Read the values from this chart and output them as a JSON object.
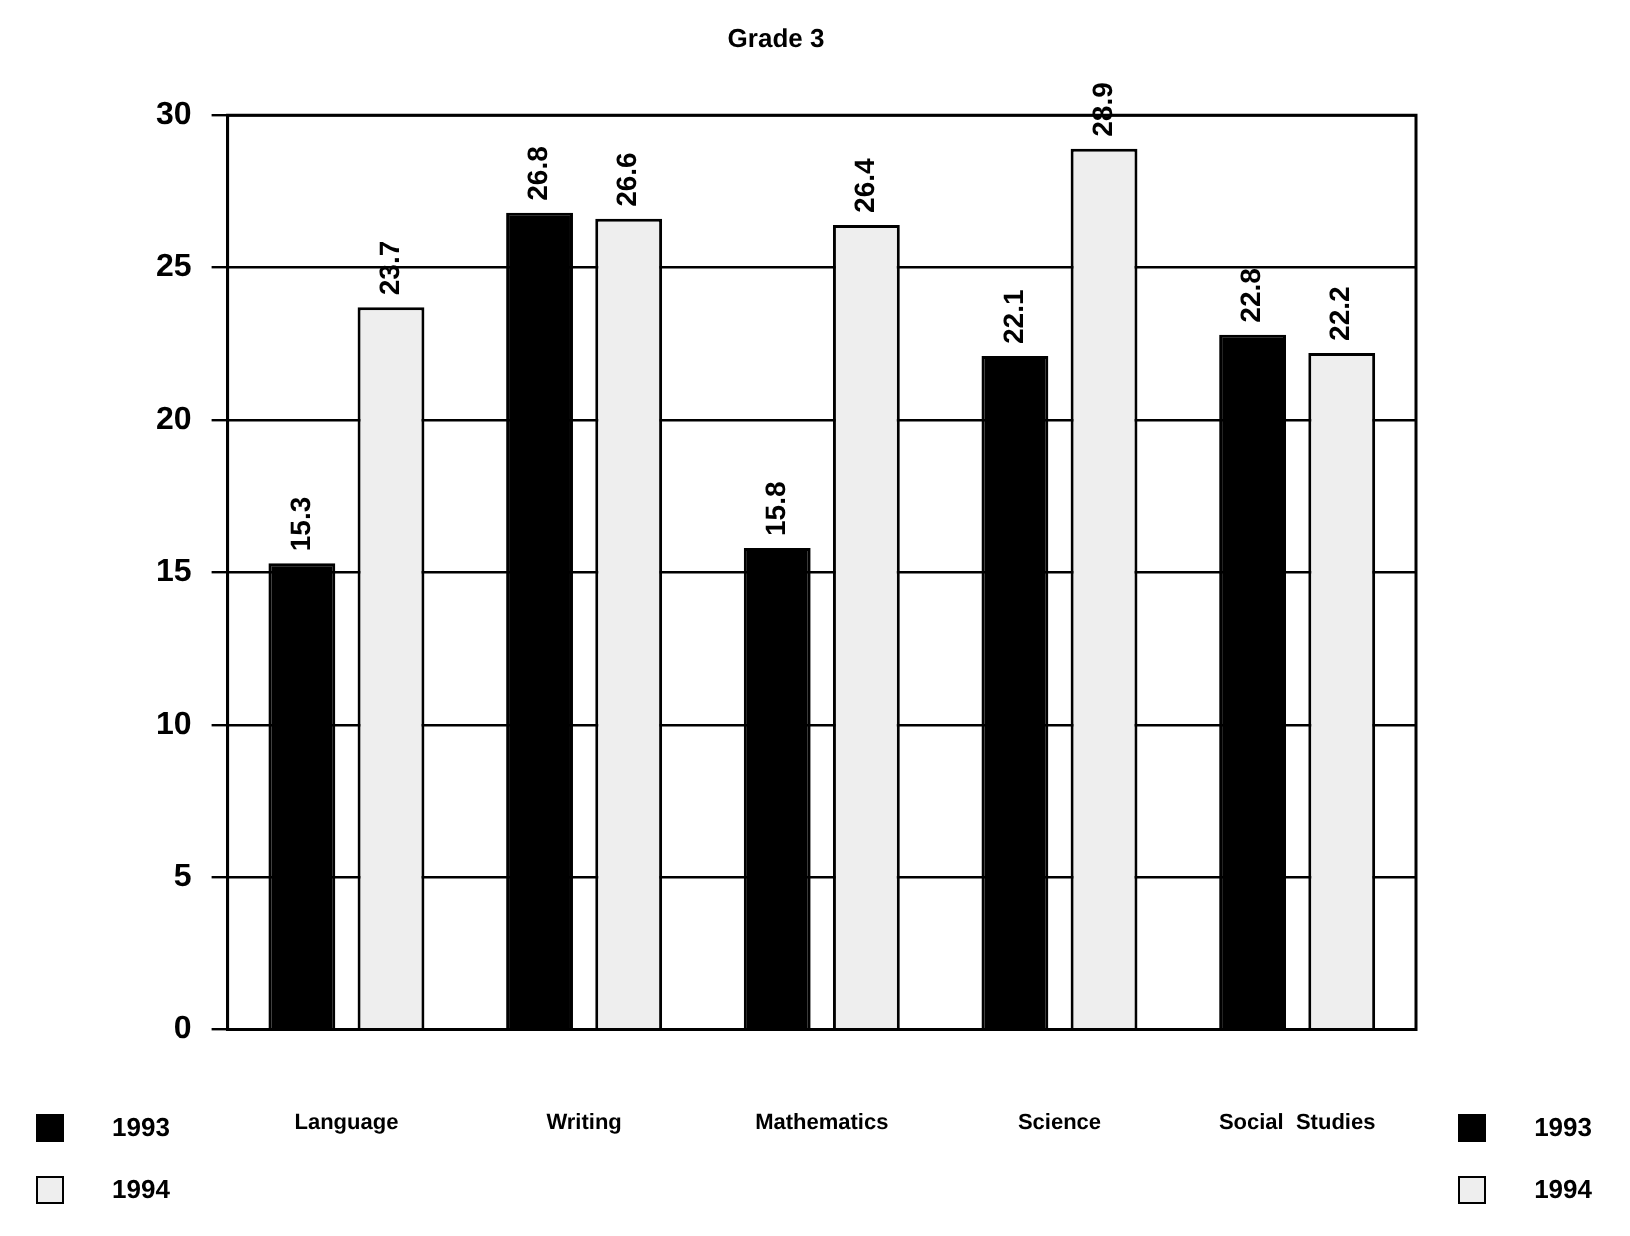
{
  "chart_data": {
    "type": "bar",
    "title": "Grade 3",
    "categories": [
      "Language",
      "Writing",
      "Mathematics",
      "Science",
      "Social  Studies"
    ],
    "series": [
      {
        "name": "1993",
        "color": "#000000",
        "values": [
          15.3,
          26.8,
          15.8,
          22.1,
          22.8
        ]
      },
      {
        "name": "1994",
        "color": "#eeeeee",
        "values": [
          23.7,
          26.6,
          26.4,
          28.9,
          22.2
        ]
      }
    ],
    "ylim": [
      0,
      30
    ],
    "yticks": [
      0,
      5,
      10,
      15,
      20,
      25,
      30
    ],
    "grid": "y",
    "legend": "bottom",
    "data_labels": true
  }
}
